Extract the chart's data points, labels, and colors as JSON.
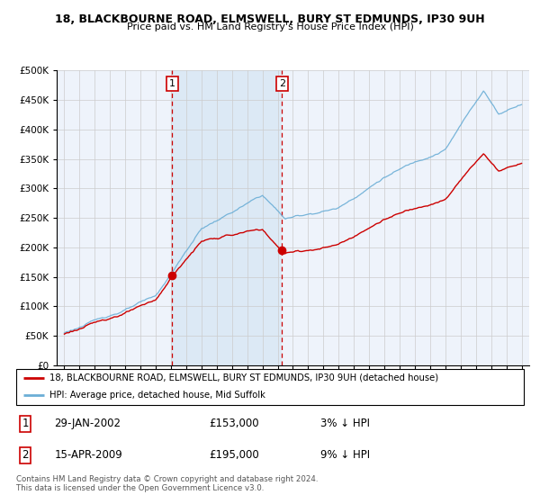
{
  "title_line1": "18, BLACKBOURNE ROAD, ELMSWELL, BURY ST EDMUNDS, IP30 9UH",
  "title_line2": "Price paid vs. HM Land Registry's House Price Index (HPI)",
  "legend_line1": "18, BLACKBOURNE ROAD, ELMSWELL, BURY ST EDMUNDS, IP30 9UH (detached house)",
  "legend_line2": "HPI: Average price, detached house, Mid Suffolk",
  "sale1_date": "29-JAN-2002",
  "sale1_price": 153000,
  "sale1_price_str": "£153,000",
  "sale1_hpi": "3% ↓ HPI",
  "sale2_date": "15-APR-2009",
  "sale2_price": 195000,
  "sale2_price_str": "£195,000",
  "sale2_hpi": "9% ↓ HPI",
  "footer": "Contains HM Land Registry data © Crown copyright and database right 2024.\nThis data is licensed under the Open Government Licence v3.0.",
  "sale1_x": 2002.08,
  "sale2_x": 2009.29,
  "hpi_color": "#6baed6",
  "price_color": "#cc0000",
  "vline_color": "#cc0000",
  "highlight_color": "#dce9f5",
  "background_color": "#eef3fb",
  "plot_bg": "#ffffff",
  "grid_color": "#cccccc",
  "ylim": [
    0,
    500000
  ],
  "xlim": [
    1994.5,
    2025.5
  ]
}
